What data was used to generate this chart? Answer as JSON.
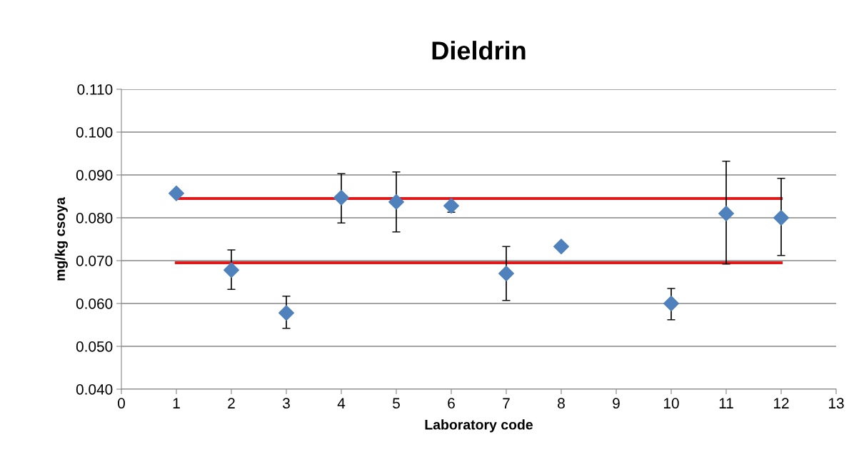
{
  "chart_data": {
    "type": "scatter",
    "title": "Dieldrin",
    "xlabel": "Laboratory code",
    "ylabel": "mg/kg csoya",
    "xlim": [
      0,
      13
    ],
    "xticks": [
      0,
      1,
      2,
      3,
      4,
      5,
      6,
      7,
      8,
      9,
      10,
      11,
      12,
      13
    ],
    "ylim": [
      0.04,
      0.11
    ],
    "yticks": [
      {
        "value": 0.04,
        "label": "0.040"
      },
      {
        "value": 0.05,
        "label": "0.050"
      },
      {
        "value": 0.06,
        "label": "0.060"
      },
      {
        "value": 0.07,
        "label": "0.070"
      },
      {
        "value": 0.08,
        "label": "0.080"
      },
      {
        "value": 0.09,
        "label": "0.090"
      },
      {
        "value": 0.1,
        "label": "0.100"
      },
      {
        "value": 0.11,
        "label": "0.110"
      }
    ],
    "grid": "y",
    "legend": false,
    "series": [
      {
        "color": "#4f81bd",
        "marker": "diamond",
        "x": [
          1,
          2,
          3,
          4,
          5,
          6,
          7,
          8,
          10,
          11,
          12
        ],
        "values": [
          0.0857,
          0.0678,
          0.0578,
          0.0847,
          0.0837,
          0.0828,
          0.067,
          0.0733,
          0.06,
          0.081,
          0.08
        ],
        "errors": [
          null,
          [
            0.0633,
            0.0725
          ],
          [
            0.0542,
            0.0617
          ],
          [
            0.0788,
            0.0903
          ],
          [
            0.0767,
            0.0907
          ],
          [
            0.0813,
            0.0828
          ],
          [
            0.0607,
            0.0733
          ],
          null,
          [
            0.0562,
            0.0635
          ],
          [
            0.0692,
            0.0932
          ],
          [
            0.0712,
            0.0892
          ]
        ]
      },
      {
        "type": "line",
        "color": "#e01a1a",
        "x": [
          1,
          12
        ],
        "values": [
          0.0845,
          0.0845
        ]
      },
      {
        "type": "line",
        "color": "#e01a1a",
        "x": [
          1,
          12
        ],
        "values": [
          0.0695,
          0.0695
        ]
      }
    ]
  }
}
